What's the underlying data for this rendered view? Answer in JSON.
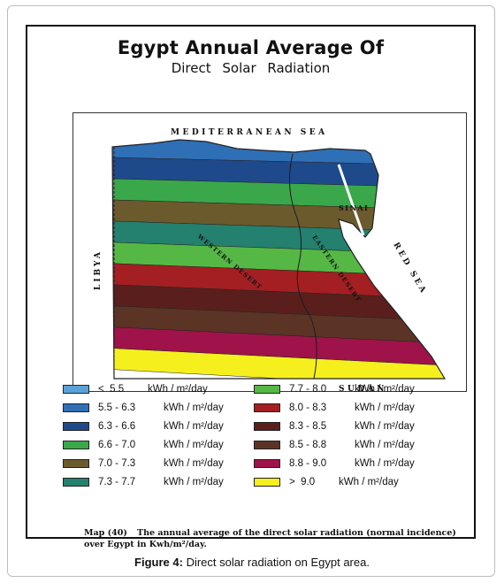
{
  "map": {
    "title_line1": "Egypt Annual Average Of",
    "title_line2": "Direct Solar Radiation",
    "labels": {
      "sea_north": "MEDITERRANEAN SEA",
      "sea_east": "RED SEA",
      "country_west": "LIBYA",
      "country_south": "SUDAN",
      "region_sinai": "SINAI",
      "desert_west": "WESTERN DESERT",
      "desert_east": "EASTERN DESERT"
    },
    "bands_north_to_south": [
      {
        "range": "5.5 - 6.3",
        "color": "#2f6fb5"
      },
      {
        "range": "6.3 - 6.6",
        "color": "#1e4a8c"
      },
      {
        "range": "6.6 - 7.0",
        "color": "#3aa84a"
      },
      {
        "range": "7.0 - 7.3",
        "color": "#6b5a2c"
      },
      {
        "range": "7.3 - 7.7",
        "color": "#24806f"
      },
      {
        "range": "7.7 - 8.0",
        "color": "#55b845"
      },
      {
        "range": "8.0 - 8.3",
        "color": "#a41f22"
      },
      {
        "range": "8.3 - 8.5",
        "color": "#5a1f1c"
      },
      {
        "range": "8.5 - 8.8",
        "color": "#5b3426"
      },
      {
        "range": "8.8 - 9.0",
        "color": "#a0124a"
      },
      {
        "range": "> 9.0",
        "color": "#f5ef1e"
      }
    ]
  },
  "legend": {
    "unit_text": "kWh / m²/day",
    "items": [
      {
        "symbol": "<",
        "value": "5.5",
        "color": "#5aa2d8"
      },
      {
        "symbol": "",
        "value": "5.5 - 6.3",
        "color": "#2f6fb5"
      },
      {
        "symbol": "",
        "value": "6.3 - 6.6",
        "color": "#1e4a8c"
      },
      {
        "symbol": "",
        "value": "6.6 - 7.0",
        "color": "#3aa84a"
      },
      {
        "symbol": "",
        "value": "7.0 - 7.3",
        "color": "#6b5a2c"
      },
      {
        "symbol": "",
        "value": "7.3 - 7.7",
        "color": "#24806f"
      },
      {
        "symbol": "",
        "value": "7.7 - 8.0",
        "color": "#55b845"
      },
      {
        "symbol": "",
        "value": "8.0 - 8.3",
        "color": "#a41f22"
      },
      {
        "symbol": "",
        "value": "8.3 - 8.5",
        "color": "#5a1f1c"
      },
      {
        "symbol": "",
        "value": "8.5 - 8.8",
        "color": "#5b3426"
      },
      {
        "symbol": "",
        "value": "8.8 - 9.0",
        "color": "#a0124a"
      },
      {
        "symbol": ">",
        "value": "9.0",
        "color": "#f5ef1e"
      }
    ]
  },
  "map_caption": {
    "number": "Map (40)",
    "text": "The annual average of the direct solar radiation (normal incidence) over Egypt in Kwh/m²/day."
  },
  "figure_caption": {
    "label": "Figure 4:",
    "text": "Direct solar radiation on Egypt area."
  }
}
